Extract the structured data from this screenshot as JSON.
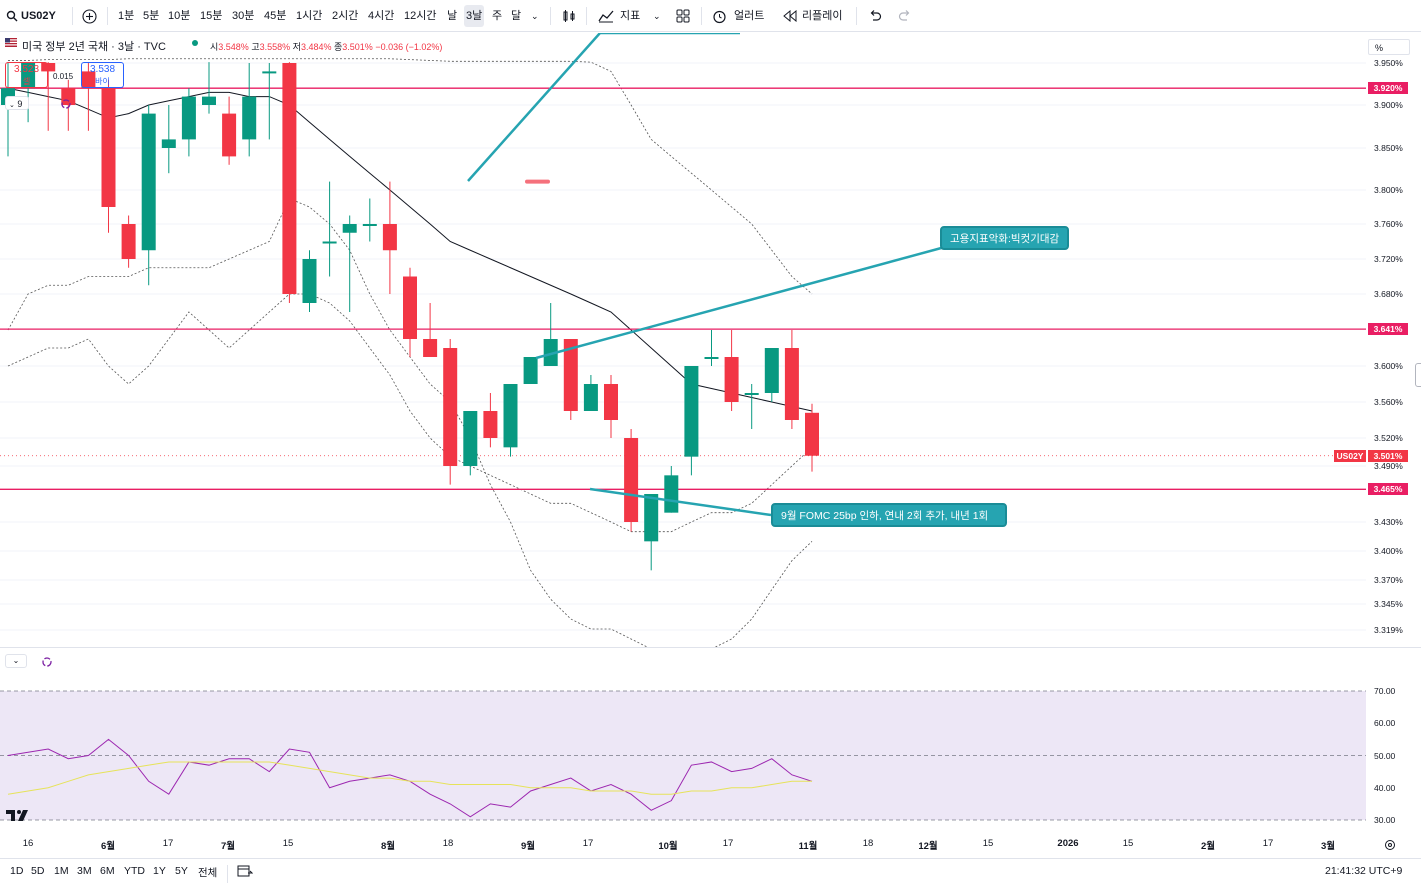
{
  "toolbar": {
    "symbol": "US02Y",
    "intervals": [
      "1분",
      "5분",
      "10분",
      "15분",
      "30분",
      "45분",
      "1시간",
      "2시간",
      "4시간",
      "12시간",
      "날",
      "3날",
      "주",
      "달"
    ],
    "active_interval": "3날",
    "indicators_label": "지표",
    "alert_label": "얼러트",
    "replay_label": "리플레이"
  },
  "legend": {
    "title": "미국 정부 2년 국채 · 3날 · TVC",
    "open_label": "시",
    "open": "3.548%",
    "high_label": "고",
    "high": "3.558%",
    "low_label": "저",
    "low": "3.484%",
    "close_label": "종",
    "close": "3.501%",
    "change": "−0.036 (−1.02%)",
    "sell_price": "3.523",
    "sell_label": "셀",
    "spread": "0.015",
    "buy_price": "3.538",
    "buy_label": "바이",
    "indicator_count": "9"
  },
  "price_axis": {
    "unit_button": "%",
    "ticks": [
      "3.950%",
      "3.900%",
      "3.850%",
      "3.800%",
      "3.760%",
      "3.720%",
      "3.680%",
      "3.600%",
      "3.560%",
      "3.520%",
      "3.490%",
      "3.430%",
      "3.400%",
      "3.370%",
      "3.345%",
      "3.319%"
    ],
    "level_tags": [
      "3.920%",
      "3.641%",
      "3.465%"
    ],
    "symbol_tag": "US02Y",
    "current_tag": "3.501%"
  },
  "annotations": {
    "top_note": "고용지표악화:빅컷기대감",
    "bottom_note": "9월 FOMC 25bp 인하, 연내 2회 추가, 내년 1회"
  },
  "rsi_axis": {
    "ticks": [
      "70.00",
      "60.00",
      "50.00",
      "40.00",
      "30.00"
    ]
  },
  "time_axis": {
    "labels": [
      "16",
      "6월",
      "17",
      "7월",
      "15",
      "8월",
      "18",
      "9월",
      "17",
      "10월",
      "17",
      "11월",
      "18",
      "12월",
      "15",
      "2026",
      "15",
      "2월",
      "17",
      "3월"
    ]
  },
  "bottom": {
    "ranges": [
      "1D",
      "5D",
      "1M",
      "3M",
      "6M",
      "YTD",
      "1Y",
      "5Y",
      "전체"
    ],
    "clock": "21:41:32 UTC+9"
  },
  "colors": {
    "up": "#089981",
    "down": "#f23645",
    "level_line": "#e91e63",
    "annotation": "#26a4b1",
    "rsi_bg": "#ede7f6",
    "rsi_line": "#9c27b0",
    "rsi_ma": "#e6e35a"
  },
  "chart_data": {
    "type": "candlestick",
    "series_ohlc": [
      {
        "o": 3.9,
        "h": 3.96,
        "l": 3.84,
        "c": 3.92
      },
      {
        "o": 3.92,
        "h": 3.96,
        "l": 3.88,
        "c": 3.95
      },
      {
        "o": 3.95,
        "h": 3.96,
        "l": 3.87,
        "c": 3.94
      },
      {
        "o": 3.92,
        "h": 3.93,
        "l": 3.87,
        "c": 3.9
      },
      {
        "o": 3.94,
        "h": 3.96,
        "l": 3.87,
        "c": 3.92
      },
      {
        "o": 3.92,
        "h": 3.93,
        "l": 3.75,
        "c": 3.78
      },
      {
        "o": 3.76,
        "h": 3.77,
        "l": 3.71,
        "c": 3.72
      },
      {
        "o": 3.73,
        "h": 3.9,
        "l": 3.69,
        "c": 3.89
      },
      {
        "o": 3.85,
        "h": 3.9,
        "l": 3.82,
        "c": 3.86
      },
      {
        "o": 3.86,
        "h": 3.92,
        "l": 3.84,
        "c": 3.91
      },
      {
        "o": 3.9,
        "h": 3.96,
        "l": 3.89,
        "c": 3.91
      },
      {
        "o": 3.89,
        "h": 3.91,
        "l": 3.83,
        "c": 3.84
      },
      {
        "o": 3.86,
        "h": 3.95,
        "l": 3.84,
        "c": 3.91
      },
      {
        "o": 3.94,
        "h": 3.95,
        "l": 3.86,
        "c": 3.94
      },
      {
        "o": 3.95,
        "h": 3.96,
        "l": 3.67,
        "c": 3.68
      },
      {
        "o": 3.67,
        "h": 3.73,
        "l": 3.66,
        "c": 3.72
      },
      {
        "o": 3.74,
        "h": 3.81,
        "l": 3.7,
        "c": 3.74
      },
      {
        "o": 3.75,
        "h": 3.77,
        "l": 3.66,
        "c": 3.76
      },
      {
        "o": 3.76,
        "h": 3.79,
        "l": 3.74,
        "c": 3.76
      },
      {
        "o": 3.76,
        "h": 3.81,
        "l": 3.68,
        "c": 3.73
      },
      {
        "o": 3.7,
        "h": 3.71,
        "l": 3.61,
        "c": 3.63
      },
      {
        "o": 3.63,
        "h": 3.67,
        "l": 3.61,
        "c": 3.61
      },
      {
        "o": 3.62,
        "h": 3.63,
        "l": 3.47,
        "c": 3.49
      },
      {
        "o": 3.49,
        "h": 3.55,
        "l": 3.48,
        "c": 3.55
      },
      {
        "o": 3.55,
        "h": 3.57,
        "l": 3.51,
        "c": 3.52
      },
      {
        "o": 3.51,
        "h": 3.58,
        "l": 3.5,
        "c": 3.58
      },
      {
        "o": 3.58,
        "h": 3.61,
        "l": 3.58,
        "c": 3.61
      },
      {
        "o": 3.6,
        "h": 3.67,
        "l": 3.6,
        "c": 3.63
      },
      {
        "o": 3.63,
        "h": 3.63,
        "l": 3.54,
        "c": 3.55
      },
      {
        "o": 3.55,
        "h": 3.59,
        "l": 3.55,
        "c": 3.58
      },
      {
        "o": 3.58,
        "h": 3.59,
        "l": 3.52,
        "c": 3.54
      },
      {
        "o": 3.52,
        "h": 3.53,
        "l": 3.42,
        "c": 3.43
      },
      {
        "o": 3.41,
        "h": 3.46,
        "l": 3.38,
        "c": 3.46
      },
      {
        "o": 3.44,
        "h": 3.49,
        "l": 3.44,
        "c": 3.48
      },
      {
        "o": 3.5,
        "h": 3.6,
        "l": 3.48,
        "c": 3.6
      },
      {
        "o": 3.61,
        "h": 3.64,
        "l": 3.6,
        "c": 3.61
      },
      {
        "o": 3.61,
        "h": 3.64,
        "l": 3.55,
        "c": 3.56
      },
      {
        "o": 3.57,
        "h": 3.58,
        "l": 3.53,
        "c": 3.57
      },
      {
        "o": 3.57,
        "h": 3.62,
        "l": 3.56,
        "c": 3.62
      },
      {
        "o": 3.62,
        "h": 3.64,
        "l": 3.53,
        "c": 3.54
      },
      {
        "o": 3.548,
        "h": 3.558,
        "l": 3.484,
        "c": 3.501
      }
    ],
    "ma": [
      3.92,
      3.915,
      3.91,
      3.905,
      3.895,
      3.885,
      3.89,
      3.9,
      3.905,
      3.91,
      3.915,
      3.915,
      3.91,
      3.91,
      3.9,
      3.88,
      3.86,
      3.84,
      3.82,
      3.8,
      3.78,
      3.76,
      3.74,
      3.73,
      3.72,
      3.71,
      3.7,
      3.69,
      3.68,
      3.67,
      3.66,
      3.64,
      3.62,
      3.6,
      3.58,
      3.575,
      3.57,
      3.565,
      3.56,
      3.555,
      3.55
    ],
    "bb_upper": [
      3.98,
      3.98,
      3.99,
      3.99,
      3.99,
      3.99,
      4.0,
      4.0,
      4.0,
      4.0,
      4.0,
      4.0,
      4.0,
      4.0,
      4.0,
      4.0,
      4.0,
      4.0,
      4.0,
      4.0,
      3.99,
      3.98,
      3.97,
      3.97,
      3.97,
      3.97,
      3.97,
      3.97,
      3.97,
      3.96,
      3.94,
      3.9,
      3.86,
      3.84,
      3.82,
      3.8,
      3.78,
      3.76,
      3.73,
      3.7,
      3.68
    ],
    "bb_lower": [
      3.64,
      3.68,
      3.69,
      3.69,
      3.7,
      3.7,
      3.7,
      3.71,
      3.71,
      3.71,
      3.71,
      3.72,
      3.73,
      3.74,
      3.79,
      3.78,
      3.76,
      3.73,
      3.68,
      3.64,
      3.61,
      3.58,
      3.56,
      3.52,
      3.47,
      3.43,
      3.38,
      3.35,
      3.33,
      3.32,
      3.32,
      3.31,
      3.3,
      3.3,
      3.3,
      3.3,
      3.31,
      3.33,
      3.36,
      3.39,
      3.41
    ],
    "bb_mid": [
      3.6,
      3.61,
      3.62,
      3.62,
      3.63,
      3.6,
      3.58,
      3.6,
      3.63,
      3.66,
      3.64,
      3.62,
      3.64,
      3.66,
      3.68,
      3.68,
      3.67,
      3.65,
      3.62,
      3.59,
      3.55,
      3.52,
      3.5,
      3.49,
      3.48,
      3.47,
      3.46,
      3.45,
      3.45,
      3.44,
      3.43,
      3.42,
      3.42,
      3.42,
      3.43,
      3.44,
      3.44,
      3.45,
      3.47,
      3.49,
      3.51
    ],
    "levels": [
      3.92,
      3.641,
      3.465
    ],
    "rsi": [
      50,
      51,
      52,
      49,
      50,
      55,
      50,
      42,
      38,
      48,
      47,
      49,
      49,
      45,
      52,
      51,
      40,
      42,
      43,
      44,
      42,
      38,
      35,
      31,
      35,
      34,
      39,
      41,
      43,
      39,
      41,
      38,
      33,
      36,
      47,
      48,
      45,
      46,
      49,
      44,
      42
    ],
    "rsi_ma": [
      38,
      39,
      40,
      42,
      44,
      45,
      46,
      47,
      48,
      48,
      48,
      48,
      48,
      48,
      47,
      46,
      45,
      44,
      43,
      43,
      42,
      42,
      41,
      41,
      41,
      41,
      40,
      40,
      40,
      39,
      39,
      39,
      38,
      38,
      39,
      39,
      40,
      40,
      41,
      42,
      42
    ]
  }
}
